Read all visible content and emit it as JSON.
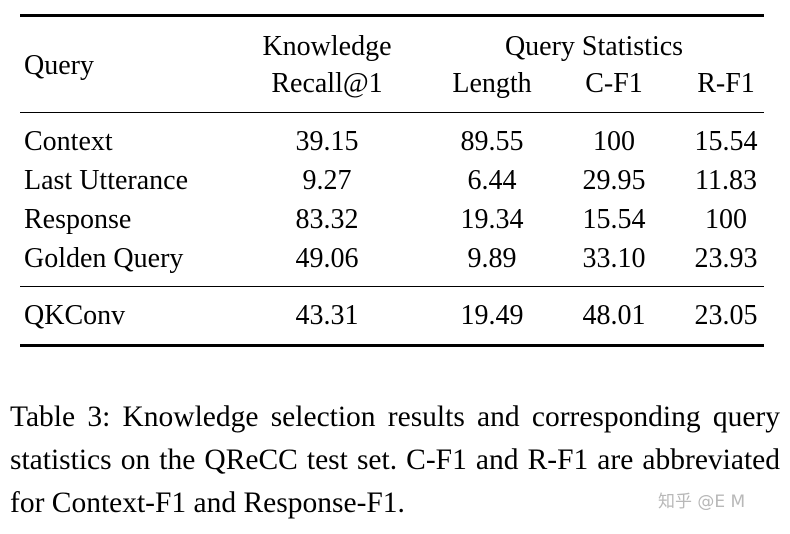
{
  "table": {
    "headers": {
      "query": "Query",
      "knowledge_line1": "Knowledge",
      "knowledge_line2": "Recall@1",
      "query_stats": "Query Statistics",
      "length": "Length",
      "cf1": "C-F1",
      "rf1": "R-F1"
    },
    "rows": [
      {
        "query": "Context",
        "recall": "39.15",
        "length": "89.55",
        "cf1": "100",
        "rf1": "15.54"
      },
      {
        "query": "Last Utterance",
        "recall": "9.27",
        "length": "6.44",
        "cf1": "29.95",
        "rf1": "11.83"
      },
      {
        "query": "Response",
        "recall": "83.32",
        "length": "19.34",
        "cf1": "15.54",
        "rf1": "100"
      },
      {
        "query": "Golden Query",
        "recall": "49.06",
        "length": "9.89",
        "cf1": "33.10",
        "rf1": "23.93"
      }
    ],
    "final_row": {
      "query": "QKConv",
      "recall": "43.31",
      "length": "19.49",
      "cf1": "48.01",
      "rf1": "23.05"
    }
  },
  "caption": "Table 3: Knowledge selection results and corresponding query statistics on the QReCC test set. C-F1 and R-F1 are abbreviated for Context-F1 and Response-F1.",
  "watermark": "知乎 @E M"
}
